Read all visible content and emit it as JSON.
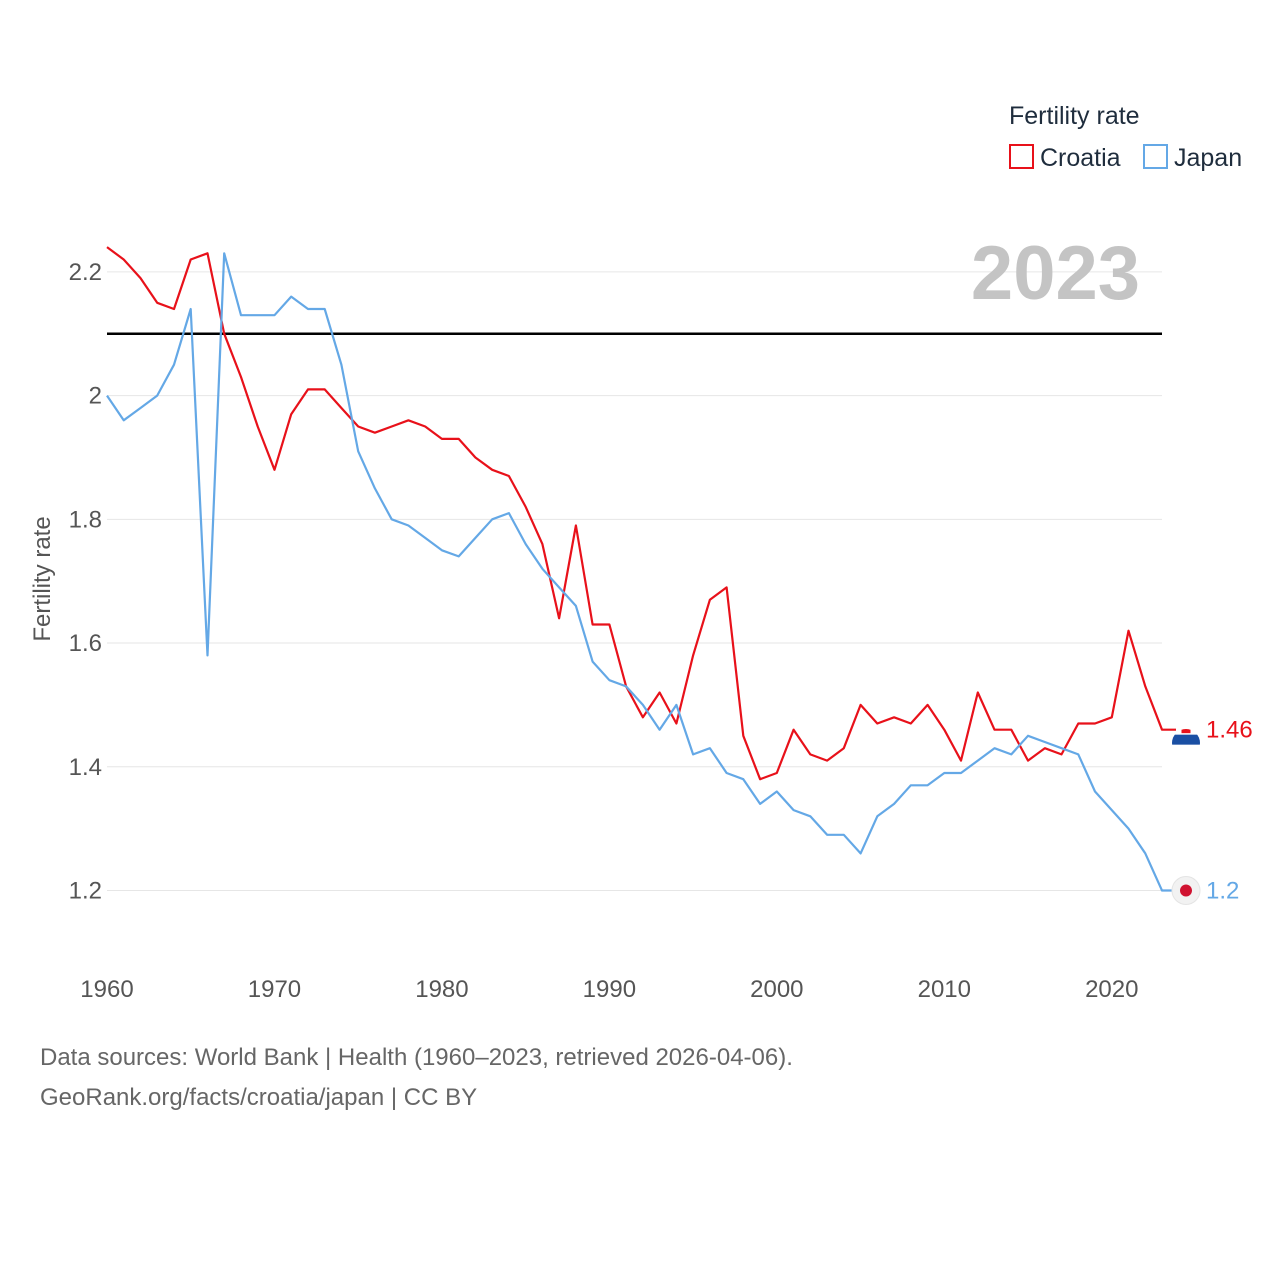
{
  "legend": {
    "title": "Fertility rate",
    "items": [
      "Croatia",
      "Japan"
    ]
  },
  "year_label": "2023",
  "footer": {
    "line1": "Data sources: World Bank | Health (1960–2023, retrieved 2026-04-06).",
    "line2": "GeoRank.org/facts/croatia/japan | CC BY"
  },
  "colors": {
    "Croatia": "#e8111a",
    "Japan": "#64a8e6",
    "reference": "#000000",
    "grid": "#e6e6e6"
  },
  "chart_data": {
    "type": "line",
    "title": "Fertility rate",
    "xlabel": "",
    "ylabel": "Fertility rate",
    "xlim": [
      1960,
      2023
    ],
    "ylim": [
      1.12,
      2.3
    ],
    "x_ticks": [
      1960,
      1970,
      1980,
      1990,
      2000,
      2010,
      2020
    ],
    "y_ticks": [
      1.2,
      1.4,
      1.6,
      1.8,
      2.0,
      2.2
    ],
    "y_tick_labels": [
      "1.2",
      "1.4",
      "1.6",
      "1.8",
      "2",
      "2.2"
    ],
    "grid": true,
    "legend_position": "top-right",
    "reference_line": {
      "y": 2.1
    },
    "x": [
      1960,
      1961,
      1962,
      1963,
      1964,
      1965,
      1966,
      1967,
      1968,
      1969,
      1970,
      1971,
      1972,
      1973,
      1974,
      1975,
      1976,
      1977,
      1978,
      1979,
      1980,
      1981,
      1982,
      1983,
      1984,
      1985,
      1986,
      1987,
      1988,
      1989,
      1990,
      1991,
      1992,
      1993,
      1994,
      1995,
      1996,
      1997,
      1998,
      1999,
      2000,
      2001,
      2002,
      2003,
      2004,
      2005,
      2006,
      2007,
      2008,
      2009,
      2010,
      2011,
      2012,
      2013,
      2014,
      2015,
      2016,
      2017,
      2018,
      2019,
      2020,
      2021,
      2022,
      2023
    ],
    "series": [
      {
        "name": "Croatia",
        "end_label": "1.46",
        "values": [
          2.24,
          2.22,
          2.19,
          2.15,
          2.14,
          2.22,
          2.23,
          2.1,
          2.03,
          1.95,
          1.88,
          1.97,
          2.01,
          2.01,
          1.98,
          1.95,
          1.94,
          1.95,
          1.96,
          1.95,
          1.93,
          1.93,
          1.9,
          1.88,
          1.87,
          1.82,
          1.76,
          1.64,
          1.79,
          1.63,
          1.63,
          1.53,
          1.48,
          1.52,
          1.47,
          1.58,
          1.67,
          1.69,
          1.45,
          1.38,
          1.39,
          1.46,
          1.42,
          1.41,
          1.43,
          1.5,
          1.47,
          1.48,
          1.47,
          1.5,
          1.46,
          1.41,
          1.52,
          1.46,
          1.46,
          1.41,
          1.43,
          1.42,
          1.47,
          1.47,
          1.48,
          1.62,
          1.53,
          1.46
        ]
      },
      {
        "name": "Japan",
        "end_label": "1.2",
        "values": [
          2.0,
          1.96,
          1.98,
          2.0,
          2.05,
          2.14,
          1.58,
          2.23,
          2.13,
          2.13,
          2.13,
          2.16,
          2.14,
          2.14,
          2.05,
          1.91,
          1.85,
          1.8,
          1.79,
          1.77,
          1.75,
          1.74,
          1.77,
          1.8,
          1.81,
          1.76,
          1.72,
          1.69,
          1.66,
          1.57,
          1.54,
          1.53,
          1.5,
          1.46,
          1.5,
          1.42,
          1.43,
          1.39,
          1.38,
          1.34,
          1.36,
          1.33,
          1.32,
          1.29,
          1.29,
          1.26,
          1.32,
          1.34,
          1.37,
          1.37,
          1.39,
          1.39,
          1.41,
          1.43,
          1.42,
          1.45,
          1.44,
          1.43,
          1.42,
          1.36,
          1.33,
          1.3,
          1.26,
          1.2
        ]
      }
    ]
  }
}
